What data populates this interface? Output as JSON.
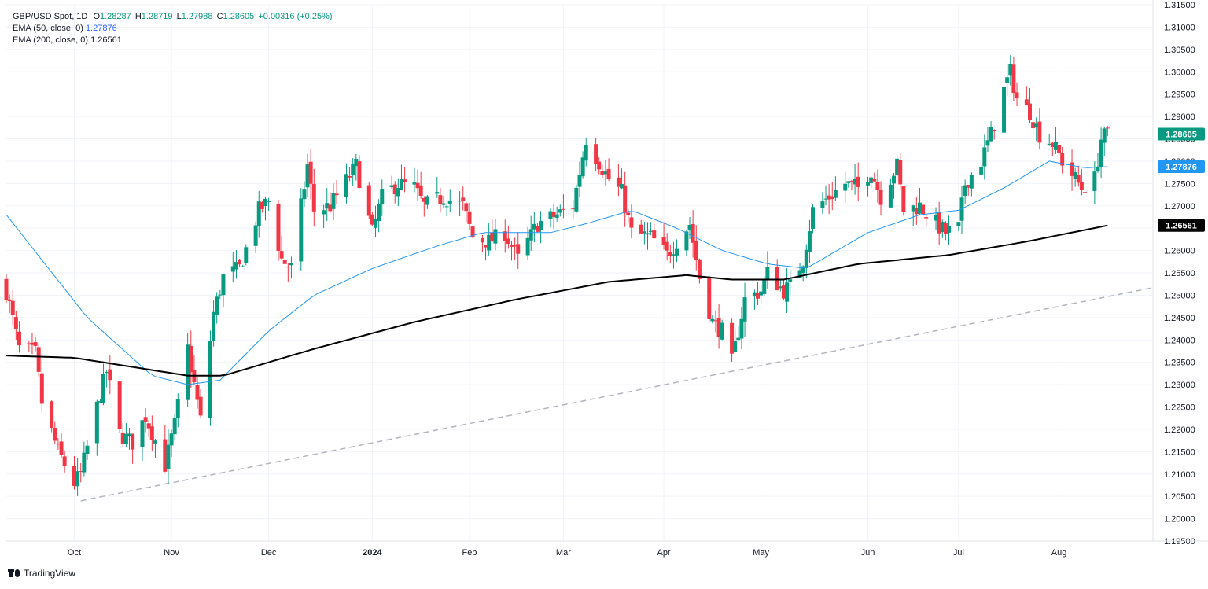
{
  "legend": {
    "symbol": "GBP/USD Spot, 1D",
    "open_label": "O",
    "open": "1.28287",
    "high_label": "H",
    "high": "1.28719",
    "low_label": "L",
    "low": "1.27988",
    "close_label": "C",
    "close": "1.28605",
    "change": "+0.00316 (+0.25%)",
    "ema50_label": "EMA (50, close, 0)",
    "ema50_value": "1.27876",
    "ema200_label": "EMA (200, close, 0)",
    "ema200_value": "1.26561"
  },
  "branding": {
    "name": "TradingView",
    "icon": "tradingview-logo-icon"
  },
  "colors": {
    "up": "#089981",
    "down": "#f23645",
    "ema50": "#2196f3",
    "ema200": "#000000",
    "trendline": "#b2b5be",
    "last_price_line": "#089981"
  },
  "chart_data": {
    "type": "candlestick",
    "y_axis": {
      "min": 1.195,
      "max": 1.315,
      "ticks": [
        "1.31500",
        "1.31000",
        "1.30500",
        "1.30000",
        "1.29500",
        "1.29000",
        "1.28500",
        "1.28000",
        "1.27500",
        "1.27000",
        "1.26500",
        "1.26000",
        "1.25500",
        "1.25000",
        "1.24500",
        "1.24000",
        "1.23500",
        "1.23000",
        "1.22500",
        "1.22000",
        "1.21500",
        "1.21000",
        "1.20500",
        "1.20000",
        "1.19500"
      ]
    },
    "x_axis": {
      "start_date": "2023-09-11",
      "end_date": "2024-08-30",
      "labels": [
        {
          "text": "Oct",
          "date": "2023-10-02",
          "bold": false
        },
        {
          "text": "Nov",
          "date": "2023-11-01",
          "bold": false
        },
        {
          "text": "Dec",
          "date": "2023-12-01",
          "bold": false
        },
        {
          "text": "2024",
          "date": "2024-01-02",
          "bold": true
        },
        {
          "text": "Feb",
          "date": "2024-02-01",
          "bold": false
        },
        {
          "text": "Mar",
          "date": "2024-03-01",
          "bold": false
        },
        {
          "text": "Apr",
          "date": "2024-04-01",
          "bold": false
        },
        {
          "text": "May",
          "date": "2024-05-01",
          "bold": false
        },
        {
          "text": "Jun",
          "date": "2024-06-03",
          "bold": false
        },
        {
          "text": "Jul",
          "date": "2024-07-01",
          "bold": false
        },
        {
          "text": "Aug",
          "date": "2024-08-01",
          "bold": false
        }
      ]
    },
    "candle_closes_anchors": [
      [
        "2023-09-11",
        1.251
      ],
      [
        "2023-09-15",
        1.238
      ],
      [
        "2023-09-20",
        1.237
      ],
      [
        "2023-09-22",
        1.226
      ],
      [
        "2023-09-27",
        1.215
      ],
      [
        "2023-10-02",
        1.208
      ],
      [
        "2023-10-04",
        1.21
      ],
      [
        "2023-10-10",
        1.228
      ],
      [
        "2023-10-12",
        1.233
      ],
      [
        "2023-10-16",
        1.219
      ],
      [
        "2023-10-20",
        1.217
      ],
      [
        "2023-10-24",
        1.223
      ],
      [
        "2023-10-30",
        1.212
      ],
      [
        "2023-11-02",
        1.221
      ],
      [
        "2023-11-06",
        1.238
      ],
      [
        "2023-11-10",
        1.222
      ],
      [
        "2023-11-14",
        1.246
      ],
      [
        "2023-11-17",
        1.254
      ],
      [
        "2023-11-22",
        1.256
      ],
      [
        "2023-11-28",
        1.269
      ],
      [
        "2023-12-01",
        1.271
      ],
      [
        "2023-12-05",
        1.258
      ],
      [
        "2023-12-08",
        1.256
      ],
      [
        "2023-12-13",
        1.279
      ],
      [
        "2023-12-15",
        1.269
      ],
      [
        "2023-12-20",
        1.27
      ],
      [
        "2023-12-28",
        1.279
      ],
      [
        "2024-01-02",
        1.264
      ],
      [
        "2024-01-05",
        1.272
      ],
      [
        "2024-01-10",
        1.275
      ],
      [
        "2024-01-15",
        1.274
      ],
      [
        "2024-01-18",
        1.27
      ],
      [
        "2024-01-24",
        1.272
      ],
      [
        "2024-01-30",
        1.27
      ],
      [
        "2024-02-02",
        1.263
      ],
      [
        "2024-02-07",
        1.262
      ],
      [
        "2024-02-12",
        1.264
      ],
      [
        "2024-02-16",
        1.258
      ],
      [
        "2024-02-22",
        1.266
      ],
      [
        "2024-02-28",
        1.268
      ],
      [
        "2024-03-04",
        1.27
      ],
      [
        "2024-03-08",
        1.285
      ],
      [
        "2024-03-11",
        1.281
      ],
      [
        "2024-03-15",
        1.276
      ],
      [
        "2024-03-19",
        1.273
      ],
      [
        "2024-03-22",
        1.264
      ],
      [
        "2024-03-28",
        1.263
      ],
      [
        "2024-04-02",
        1.259
      ],
      [
        "2024-04-05",
        1.262
      ],
      [
        "2024-04-09",
        1.266
      ],
      [
        "2024-04-12",
        1.254
      ],
      [
        "2024-04-16",
        1.244
      ],
      [
        "2024-04-19",
        1.242
      ],
      [
        "2024-04-22",
        1.235
      ],
      [
        "2024-04-26",
        1.249
      ],
      [
        "2024-05-01",
        1.251
      ],
      [
        "2024-05-03",
        1.255
      ],
      [
        "2024-05-08",
        1.251
      ],
      [
        "2024-05-10",
        1.252
      ],
      [
        "2024-05-14",
        1.258
      ],
      [
        "2024-05-17",
        1.269
      ],
      [
        "2024-05-22",
        1.272
      ],
      [
        "2024-05-27",
        1.275
      ],
      [
        "2024-05-31",
        1.274
      ],
      [
        "2024-06-04",
        1.278
      ],
      [
        "2024-06-07",
        1.272
      ],
      [
        "2024-06-12",
        1.279
      ],
      [
        "2024-06-14",
        1.269
      ],
      [
        "2024-06-19",
        1.27
      ],
      [
        "2024-06-24",
        1.266
      ],
      [
        "2024-06-27",
        1.264
      ],
      [
        "2024-07-01",
        1.265
      ],
      [
        "2024-07-03",
        1.275
      ],
      [
        "2024-07-08",
        1.28
      ],
      [
        "2024-07-11",
        1.286
      ],
      [
        "2024-07-15",
        1.296
      ],
      [
        "2024-07-17",
        1.3
      ],
      [
        "2024-07-19",
        1.294
      ],
      [
        "2024-07-23",
        1.291
      ],
      [
        "2024-07-26",
        1.286
      ],
      [
        "2024-07-30",
        1.284
      ],
      [
        "2024-08-02",
        1.28
      ],
      [
        "2024-08-06",
        1.276
      ],
      [
        "2024-08-08",
        1.274
      ],
      [
        "2024-08-12",
        1.276
      ],
      [
        "2024-08-14",
        1.285
      ],
      [
        "2024-08-16",
        1.286
      ]
    ],
    "ema50_anchors": [
      [
        "2023-09-11",
        1.268
      ],
      [
        "2023-10-06",
        1.245
      ],
      [
        "2023-10-26",
        1.232
      ],
      [
        "2023-11-06",
        1.23
      ],
      [
        "2023-11-16",
        1.231
      ],
      [
        "2023-12-01",
        1.242
      ],
      [
        "2023-12-15",
        1.25
      ],
      [
        "2024-01-02",
        1.256
      ],
      [
        "2024-01-22",
        1.261
      ],
      [
        "2024-02-05",
        1.264
      ],
      [
        "2024-02-26",
        1.264
      ],
      [
        "2024-03-08",
        1.266
      ],
      [
        "2024-03-22",
        1.269
      ],
      [
        "2024-04-05",
        1.265
      ],
      [
        "2024-04-19",
        1.26
      ],
      [
        "2024-05-03",
        1.257
      ],
      [
        "2024-05-15",
        1.256
      ],
      [
        "2024-06-03",
        1.264
      ],
      [
        "2024-06-19",
        1.268
      ],
      [
        "2024-07-01",
        1.269
      ],
      [
        "2024-07-15",
        1.274
      ],
      [
        "2024-07-29",
        1.28
      ],
      [
        "2024-08-09",
        1.2785
      ],
      [
        "2024-08-16",
        1.27876
      ]
    ],
    "ema200_anchors": [
      [
        "2023-09-11",
        1.2365
      ],
      [
        "2023-10-02",
        1.236
      ],
      [
        "2023-11-06",
        1.232
      ],
      [
        "2023-11-17",
        1.232
      ],
      [
        "2023-12-15",
        1.238
      ],
      [
        "2024-01-15",
        1.244
      ],
      [
        "2024-02-15",
        1.249
      ],
      [
        "2024-03-15",
        1.253
      ],
      [
        "2024-04-08",
        1.2545
      ],
      [
        "2024-04-22",
        1.2535
      ],
      [
        "2024-05-08",
        1.2535
      ],
      [
        "2024-05-31",
        1.257
      ],
      [
        "2024-06-28",
        1.259
      ],
      [
        "2024-07-22",
        1.262
      ],
      [
        "2024-08-16",
        1.26561
      ]
    ],
    "trendline": {
      "start": [
        "2023-10-04",
        1.204
      ],
      "end": [
        "2024-08-30",
        1.2517
      ],
      "style": "dashed"
    },
    "last_price": {
      "value": 1.28605,
      "label": "1.28605"
    },
    "ema50_label": "1.27876",
    "ema200_label": "1.26561",
    "grid": true
  }
}
